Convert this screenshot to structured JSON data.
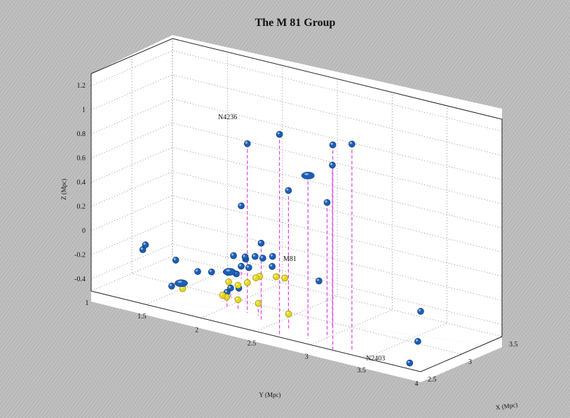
{
  "chart_data": {
    "type": "scatter",
    "title": "The M 81 Group",
    "xlabel": "X (Mpc)",
    "ylabel": "Y (Mpc)",
    "zlabel": "Z (Mpc)",
    "ylim": [
      1,
      4
    ],
    "xlim": [
      2.5,
      3.5
    ],
    "zlim": [
      -0.5,
      1.3
    ],
    "y_ticks": [
      "4",
      "3.5",
      "3",
      "2.5",
      "2",
      "1.5",
      "1"
    ],
    "x_ticks": [
      "2.5",
      "3",
      "3.5"
    ],
    "z_ticks": [
      "1.2",
      "1",
      "0.8",
      "0.6",
      "0.4",
      "0.2",
      "0",
      "-0.2",
      "-0.4"
    ],
    "grid": true,
    "annotations": [
      "N4236",
      "M81",
      "N2403"
    ],
    "colors": {
      "blue": "#1a5fb8",
      "yellow": "#e6d81e",
      "stem": "#e040e0"
    },
    "series": [
      {
        "color": "blue",
        "points": [
          {
            "y": 3.2,
            "x": 2.5,
            "z": 1.2
          },
          {
            "y": 3.3,
            "x": 2.6,
            "z": 1.2
          },
          {
            "y": 2.7,
            "x": 2.52,
            "z": 1.17
          },
          {
            "y": 2.9,
            "x": 2.9,
            "z": 0.85
          },
          {
            "y": 2.2,
            "x": 2.8,
            "z": 0.9
          },
          {
            "y": 3.0,
            "x": 2.7,
            "z": 0.62
          },
          {
            "y": 2.5,
            "x": 2.9,
            "z": 0.55
          },
          {
            "y": 2.4,
            "x": 2.7,
            "z": 0.15
          },
          {
            "y": 3.0,
            "x": 2.6,
            "z": 0.0
          },
          {
            "y": 4.0,
            "x": 2.5,
            "z": 0.0
          },
          {
            "y": 3.9,
            "x": 2.5,
            "z": -0.45
          },
          {
            "y": 3.9,
            "x": 2.6,
            "z": -0.3
          },
          {
            "y": 2.4,
            "x": 2.72,
            "z": 0.02
          },
          {
            "y": 2.5,
            "x": 2.7,
            "z": -0.02
          },
          {
            "y": 2.4,
            "x": 2.84,
            "z": 0.0
          },
          {
            "y": 2.3,
            "x": 2.76,
            "z": 0.0
          },
          {
            "y": 2.2,
            "x": 2.78,
            "z": -0.05
          },
          {
            "y": 2.25,
            "x": 2.75,
            "z": -0.1
          },
          {
            "y": 2.15,
            "x": 2.84,
            "z": -0.06
          },
          {
            "y": 2.0,
            "x": 2.9,
            "z": -0.1
          },
          {
            "y": 2.1,
            "x": 2.8,
            "z": -0.2
          },
          {
            "y": 1.95,
            "x": 2.9,
            "z": -0.25
          },
          {
            "y": 2.0,
            "x": 2.82,
            "z": -0.38
          },
          {
            "y": 1.8,
            "x": 2.9,
            "z": -0.28
          },
          {
            "y": 1.6,
            "x": 3.0,
            "z": -0.35
          },
          {
            "y": 1.9,
            "x": 3.0,
            "z": -0.42
          },
          {
            "y": 1.9,
            "x": 3.1,
            "z": -0.45
          },
          {
            "y": 1.4,
            "x": 2.95,
            "z": -0.5
          },
          {
            "y": 1.4,
            "x": 3.0,
            "z": -0.3
          },
          {
            "y": 1.7,
            "x": 3.4,
            "z": 0.1
          },
          {
            "y": 1.7,
            "x": 3.4,
            "z": -0.4
          },
          {
            "y": 1.1,
            "x": 3.0,
            "z": -0.28
          },
          {
            "y": 1.05,
            "x": 3.1,
            "z": -0.28
          }
        ]
      },
      {
        "color": "yellow",
        "points": [
          {
            "y": 2.6,
            "x": 2.72,
            "z": -0.1
          },
          {
            "y": 2.5,
            "x": 2.75,
            "z": -0.12
          },
          {
            "y": 2.35,
            "x": 2.75,
            "z": -0.15
          },
          {
            "y": 2.3,
            "x": 2.77,
            "z": -0.18
          },
          {
            "y": 2.2,
            "x": 2.8,
            "z": -0.25
          },
          {
            "y": 2.1,
            "x": 2.82,
            "z": -0.3
          },
          {
            "y": 2.0,
            "x": 2.84,
            "z": -0.3
          },
          {
            "y": 2.65,
            "x": 2.7,
            "z": -0.38
          },
          {
            "y": 2.3,
            "x": 2.8,
            "z": -0.4
          },
          {
            "y": 2.1,
            "x": 2.82,
            "z": -0.42
          },
          {
            "y": 1.9,
            "x": 2.95,
            "z": -0.48
          },
          {
            "y": 1.9,
            "x": 2.9,
            "z": -0.45
          },
          {
            "y": 1.5,
            "x": 2.95,
            "z": -0.5
          }
        ]
      }
    ],
    "labelled": [
      {
        "label": "N4236",
        "color": "blue",
        "y": 2.9,
        "x": 2.6,
        "z": 0.85
      },
      {
        "label": "M81",
        "color": "blue",
        "y": 2.0,
        "x": 2.85,
        "z": -0.22
      },
      {
        "label": "N2403",
        "color": "blue",
        "y": 1.45,
        "x": 3.0,
        "z": -0.48
      }
    ]
  }
}
